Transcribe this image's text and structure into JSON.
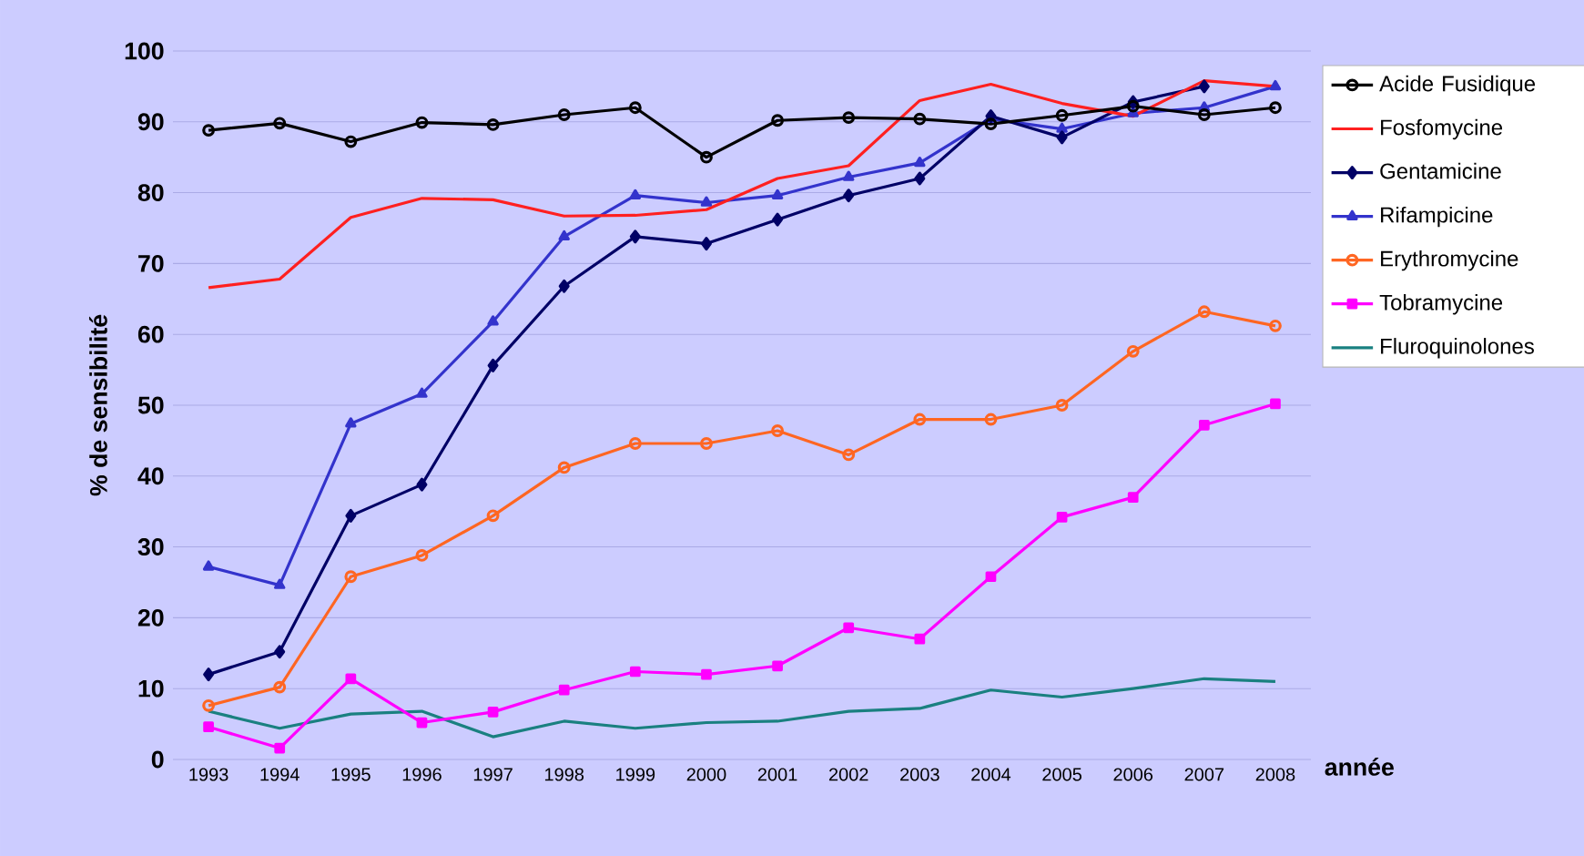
{
  "chart_data": {
    "type": "line",
    "xlabel": "année",
    "ylabel": "% de sensibilité",
    "categories": [
      "1993",
      "1994",
      "1995",
      "1996",
      "1997",
      "1998",
      "1999",
      "2000",
      "2001",
      "2002",
      "2003",
      "2004",
      "2005",
      "2006",
      "2007",
      "2008"
    ],
    "ylim": [
      0,
      100
    ],
    "yticks": [
      0,
      10,
      20,
      30,
      40,
      50,
      60,
      70,
      80,
      90,
      100
    ],
    "grid": "y",
    "legend": "right",
    "line_style": "solid",
    "series": [
      {
        "name": "Acide Fusidique",
        "color": "#000000",
        "marker": "circle",
        "values": [
          88.8,
          89.8,
          87.2,
          89.9,
          89.6,
          91,
          92,
          85,
          90.2,
          90.6,
          90.4,
          89.7,
          90.9,
          92.2,
          91,
          92
        ]
      },
      {
        "name": "Fosfomycine",
        "color": "#ff2020",
        "marker": "none",
        "values": [
          66.6,
          67.8,
          76.5,
          79.2,
          79,
          76.7,
          76.8,
          77.6,
          82,
          83.8,
          93,
          95.3,
          92.6,
          90.8,
          95.8,
          95
        ]
      },
      {
        "name": "Gentamicine",
        "color": "#000066",
        "marker": "diamond",
        "values": [
          12,
          15.2,
          34.4,
          38.8,
          55.6,
          66.8,
          73.8,
          72.8,
          76.2,
          79.6,
          82,
          90.8,
          87.8,
          92.8,
          95,
          null
        ]
      },
      {
        "name": "Rifampicine",
        "color": "#3333cc",
        "marker": "triangle",
        "values": [
          27.2,
          24.6,
          47.4,
          51.6,
          61.8,
          73.8,
          79.6,
          78.6,
          79.6,
          82.2,
          84.2,
          90.4,
          89,
          91.2,
          92,
          95
        ]
      },
      {
        "name": "Erythromycine",
        "color": "#ff6622",
        "marker": "circle",
        "values": [
          7.6,
          10.2,
          25.8,
          28.8,
          34.4,
          41.2,
          44.6,
          44.6,
          46.4,
          43,
          48,
          48,
          50,
          57.6,
          63.2,
          61.2
        ]
      },
      {
        "name": "Tobramycine",
        "color": "#ff00ff",
        "marker": "square",
        "values": [
          4.6,
          1.6,
          11.4,
          5.2,
          6.7,
          9.8,
          12.4,
          12,
          13.2,
          18.6,
          17,
          25.8,
          34.2,
          37,
          47.2,
          50.2
        ]
      },
      {
        "name": "Fluroquinolones",
        "color": "#1a8080",
        "marker": "none",
        "values": [
          6.8,
          4.4,
          6.4,
          6.8,
          3.2,
          5.4,
          4.4,
          5.2,
          5.4,
          6.8,
          7.2,
          9.8,
          8.8,
          10,
          11.4,
          11
        ]
      }
    ]
  }
}
